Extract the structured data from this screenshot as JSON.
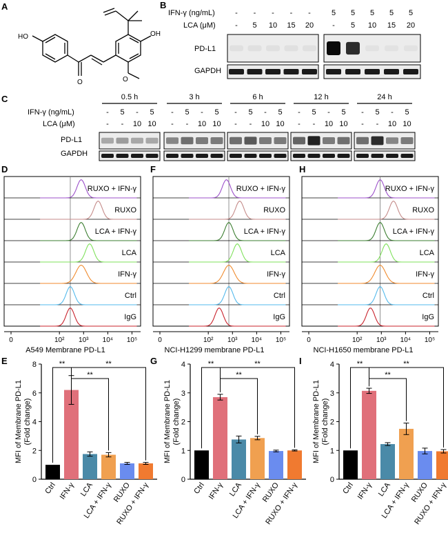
{
  "panel_letters": {
    "A": "A",
    "B": "B",
    "C": "C",
    "D": "D",
    "F": "F",
    "H": "H",
    "E": "E",
    "G": "G",
    "I": "I"
  },
  "panelB": {
    "row_labels": [
      "IFN-γ (ng/mL)",
      "LCA (μM)"
    ],
    "ifn": [
      "-",
      "-",
      "-",
      "-",
      "-",
      "5",
      "5",
      "5",
      "5",
      "5"
    ],
    "lca": [
      "-",
      "5",
      "10",
      "15",
      "20",
      "-",
      "5",
      "10",
      "15",
      "20"
    ],
    "blots": [
      "PD-L1",
      "GAPDH"
    ],
    "pdl1_intensity": [
      0.05,
      0.05,
      0.05,
      0.05,
      0.05,
      1.0,
      0.85,
      0.04,
      0.04,
      0.04
    ]
  },
  "panelC": {
    "row_labels": [
      "IFN-γ (ng/mL)",
      "LCA (μM)"
    ],
    "times": [
      "0.5 h",
      "3 h",
      "6 h",
      "12 h",
      "24 h"
    ],
    "ifn": [
      "-",
      "5",
      "-",
      "5"
    ],
    "lca": [
      "-",
      "-",
      "10",
      "10"
    ],
    "blots": [
      "PD-L1",
      "GAPDH"
    ],
    "pdl1_intensity": [
      [
        0.3,
        0.35,
        0.3,
        0.3
      ],
      [
        0.45,
        0.55,
        0.5,
        0.5
      ],
      [
        0.55,
        0.65,
        0.5,
        0.5
      ],
      [
        0.6,
        0.9,
        0.5,
        0.55
      ],
      [
        0.55,
        0.85,
        0.45,
        0.5
      ]
    ]
  },
  "histograms": [
    {
      "id": "D",
      "xlabel": "A549 Membrane PD-L1",
      "peaks": [
        2.9,
        3.6,
        2.9,
        3.25,
        2.9,
        2.45,
        2.45
      ]
    },
    {
      "id": "F",
      "xlabel": "NCI-H1299 membrane PD-L1",
      "peaks": [
        2.75,
        3.3,
        2.85,
        3.2,
        2.85,
        2.85,
        2.45
      ]
    },
    {
      "id": "H",
      "xlabel": "NCI-H1650 membrane PD-L1",
      "peaks": [
        2.95,
        3.5,
        2.95,
        3.2,
        2.95,
        2.95,
        2.55
      ]
    }
  ],
  "hist_rows": [
    "RUXO + IFN-γ",
    "RUXO",
    "LCA + IFN-γ",
    "LCA",
    "IFN-γ",
    "Ctrl",
    "IgG"
  ],
  "hist_colors": [
    "#9b4fc9",
    "#c48a88",
    "#3a7d2f",
    "#7ee05a",
    "#f08a2c",
    "#52b9ec",
    "#c8202a"
  ],
  "hist_ticks": {
    "values": [
      0,
      2,
      3,
      4,
      5
    ],
    "labels": [
      "0",
      "10²",
      "10³",
      "10⁴",
      "10⁵"
    ]
  },
  "chart_data": [
    {
      "type": "bar",
      "panel": "E",
      "ylabel": "MFI of Membrane PD-L1 (Fold change)",
      "ylim": [
        0,
        8
      ],
      "yticks": [
        "0",
        "2",
        "4",
        "6",
        "8"
      ],
      "categories": [
        "Ctrl",
        "IFN-γ",
        "LCA",
        "LCA + IFN-γ",
        "RUXO",
        "RUXO + IFN-γ"
      ],
      "values": [
        1.0,
        6.2,
        1.75,
        1.7,
        1.1,
        1.1
      ],
      "errors": [
        0,
        1.0,
        0.15,
        0.15,
        0.07,
        0.07
      ],
      "significance": [
        "**",
        "**",
        "**"
      ]
    },
    {
      "type": "bar",
      "panel": "G",
      "ylabel": "MFI of Membrane PD-L1 (Fold change)",
      "ylim": [
        0,
        4
      ],
      "yticks": [
        "0",
        "1",
        "2",
        "3",
        "4"
      ],
      "categories": [
        "Ctrl",
        "IFN-γ",
        "LCA",
        "LCA + IFN-γ",
        "RUXO",
        "RUXO + IFN-γ"
      ],
      "values": [
        1.0,
        2.85,
        1.38,
        1.43,
        0.98,
        1.0
      ],
      "errors": [
        0,
        0.1,
        0.12,
        0.06,
        0.03,
        0.02
      ],
      "significance": [
        "**",
        "**",
        "**"
      ]
    },
    {
      "type": "bar",
      "panel": "I",
      "ylabel": "MFI of Membrane PD-L1 (Fold change)",
      "ylim": [
        0,
        4
      ],
      "yticks": [
        "0",
        "1",
        "2",
        "3",
        "4"
      ],
      "categories": [
        "Ctrl",
        "IFN-γ",
        "LCA",
        "LCA + IFN-γ",
        "RUXO",
        "RUXO + IFN-γ"
      ],
      "values": [
        1.0,
        3.07,
        1.22,
        1.75,
        0.98,
        0.97
      ],
      "errors": [
        0,
        0.09,
        0.05,
        0.2,
        0.1,
        0.06
      ],
      "significance": [
        "**",
        "**",
        "**"
      ]
    }
  ],
  "bar_colors": [
    "#000000",
    "#e0707a",
    "#4a8aa8",
    "#f0a050",
    "#6a8cef",
    "#f07a30"
  ]
}
